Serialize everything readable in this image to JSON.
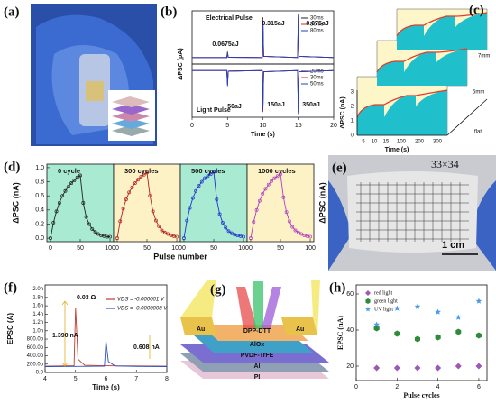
{
  "chart_data": [
    {
      "type": "stacked_line",
      "label": "(b)",
      "xlabel": "Time (s)",
      "ylabel": "ΔPSC (pA)",
      "xlim": [
        0,
        20
      ],
      "xticks": [
        0,
        5,
        10,
        15,
        20
      ],
      "x": [
        0,
        4.9,
        5,
        5.1,
        9.9,
        10,
        10.1,
        14.9,
        15,
        15.1,
        20
      ],
      "upper": {
        "title": "Electrical Pulse",
        "ylim": [
          -0.5,
          3.6
        ],
        "series": [
          {
            "name": "30ms",
            "color": "#222222",
            "values": [
              0,
              0,
              0.45,
              0.02,
              0,
              3.1,
              0.1,
              0,
              3.2,
              0.1,
              0
            ]
          },
          {
            "name": "50ms",
            "color": "#d62728",
            "values": [
              0,
              0,
              0.4,
              0.02,
              0,
              3.0,
              0.1,
              0,
              3.3,
              0.1,
              0
            ]
          },
          {
            "name": "80ms",
            "color": "#1f3fbf",
            "values": [
              0,
              0,
              0.35,
              0.02,
              0,
              2.9,
              0.1,
              0,
              3.35,
              0.1,
              0
            ]
          }
        ]
      },
      "lower": {
        "title": "Light Pulse",
        "ylim": [
          -3.6,
          0.5
        ],
        "series": [
          {
            "name": "20ms",
            "color": "#222222",
            "values": [
              0,
              0,
              -1.0,
              -0.05,
              0,
              -3.0,
              -0.1,
              0,
              -3.2,
              -0.1,
              0
            ]
          },
          {
            "name": "30ms",
            "color": "#d62728",
            "values": [
              0,
              0,
              -1.1,
              -0.05,
              0,
              -3.2,
              -0.1,
              0,
              -3.3,
              -0.1,
              0
            ]
          },
          {
            "name": "50ms",
            "color": "#1f3fbf",
            "values": [
              0,
              0,
              -1.2,
              -0.05,
              0,
              -3.1,
              -0.1,
              0,
              -3.35,
              -0.1,
              0
            ]
          }
        ]
      },
      "annotations": [
        "0.0675aJ",
        "0.315aJ",
        "0.675aJ",
        "50aJ",
        "150aJ",
        "350aJ"
      ]
    },
    {
      "type": "multi_line",
      "label": "(d)",
      "xlabel": "Pulse number",
      "ylabel": "ΔPSC (nA)",
      "ylabel_right": "ΔPSC (nA)",
      "xlim": [
        -6,
        106
      ],
      "xticks": [
        0,
        50,
        100
      ],
      "ylim": [
        -0.05,
        1.05
      ],
      "yticks": [
        {
          "value": 0,
          "label": "0.0"
        },
        0.2,
        0.4,
        0.6,
        0.8,
        {
          "value": 1,
          "label": "1.0"
        }
      ],
      "x": [
        0,
        5,
        10,
        15,
        20,
        25,
        30,
        35,
        40,
        45,
        50,
        55,
        60,
        65,
        70,
        75,
        80,
        85,
        90,
        95,
        100
      ],
      "panels": [
        {
          "title": "0 cycle",
          "color": "#222222",
          "background": "#a9ead3",
          "values": [
            0,
            0.22,
            0.38,
            0.5,
            0.6,
            0.67,
            0.73,
            0.78,
            0.82,
            0.86,
            0.89,
            0.5,
            0.3,
            0.2,
            0.13,
            0.09,
            0.06,
            0.04,
            0.03,
            0.02,
            0.02
          ]
        },
        {
          "title": "300 cycles",
          "color": "#b22222",
          "background": "#fcf2c6",
          "values": [
            0,
            0.24,
            0.42,
            0.55,
            0.65,
            0.72,
            0.78,
            0.83,
            0.87,
            0.9,
            0.93,
            0.6,
            0.38,
            0.25,
            0.17,
            0.11,
            0.08,
            0.06,
            0.04,
            0.03,
            0.02
          ]
        },
        {
          "title": "500 cycles",
          "color": "#2233cc",
          "background": "#a9ead3",
          "values": [
            0,
            0.25,
            0.43,
            0.57,
            0.67,
            0.74,
            0.8,
            0.85,
            0.88,
            0.91,
            0.94,
            0.55,
            0.34,
            0.22,
            0.15,
            0.1,
            0.07,
            0.05,
            0.04,
            0.03,
            0.02
          ]
        },
        {
          "title": "1000 cycles",
          "color": "#b040c0",
          "background": "#fcf2c6",
          "values": [
            0,
            0.23,
            0.4,
            0.53,
            0.63,
            0.7,
            0.76,
            0.81,
            0.85,
            0.88,
            0.91,
            0.58,
            0.37,
            0.24,
            0.16,
            0.11,
            0.08,
            0.06,
            0.04,
            0.03,
            0.02
          ]
        }
      ]
    },
    {
      "type": "line",
      "label": "(f)",
      "xlabel": "Time (s)",
      "ylabel": "EPSC (A)",
      "xlim": [
        4,
        8
      ],
      "xticks": [
        4,
        5,
        6,
        7,
        8
      ],
      "ylim": [
        0,
        2.1e-09
      ],
      "yticks": [
        {
          "value": 0,
          "label": "0.0"
        },
        {
          "value": 2e-10,
          "label": "200.0p"
        },
        {
          "value": 4e-10,
          "label": "400.0p"
        },
        {
          "value": 6e-10,
          "label": "600.0p"
        },
        {
          "value": 8e-10,
          "label": "800.0p"
        },
        {
          "value": 1e-09,
          "label": "1.0n"
        },
        {
          "value": 1.2e-09,
          "label": "1.2n"
        },
        {
          "value": 1.4e-09,
          "label": "1.4n"
        },
        {
          "value": 1.6e-09,
          "label": "1.6n"
        },
        {
          "value": 1.8e-09,
          "label": "1.8n"
        },
        {
          "value": 2e-09,
          "label": "2.0n"
        }
      ],
      "series": [
        {
          "name": "VDS = -0.000001 V",
          "color": "#c0392b",
          "x": [
            4,
            4.5,
            4.95,
            5.0,
            5.08,
            5.3,
            6,
            7,
            8
          ],
          "values": [
            1.5e-10,
            1.55e-10,
            1.6e-10,
            1.55e-09,
            3.2e-10,
            1.7e-10,
            1.6e-10,
            1.55e-10,
            1.5e-10
          ]
        },
        {
          "name": "VDS = -0.0000008 V",
          "color": "#2c4fbf",
          "x": [
            4,
            5,
            5.95,
            6.0,
            6.08,
            6.3,
            7,
            8
          ],
          "values": [
            1.4e-10,
            1.45e-10,
            1.5e-10,
            7.6e-10,
            2.6e-10,
            1.55e-10,
            1.45e-10,
            1.4e-10
          ]
        }
      ],
      "annotations": [
        "0.03 Ω",
        "1.390 nA",
        "0.608 nA"
      ]
    },
    {
      "type": "scatter",
      "label": "(h)",
      "xlabel": "Pulse cycles",
      "ylabel": "EPSC (nA)",
      "xlim": [
        0,
        6.4
      ],
      "xticks": [
        0,
        2,
        4,
        6
      ],
      "ylim": [
        12,
        65
      ],
      "yticks": [
        20,
        40,
        60
      ],
      "x": [
        1,
        2,
        3,
        4,
        5,
        6
      ],
      "series": [
        {
          "name": "red light",
          "color": "#9b59b6",
          "marker": "diamond",
          "values": [
            19,
            19,
            19,
            19,
            20,
            20
          ]
        },
        {
          "name": "green light",
          "color": "#2e8b3a",
          "marker": "hexagon",
          "values": [
            41,
            38,
            35,
            36,
            39,
            37
          ]
        },
        {
          "name": "UV light",
          "color": "#4a9be8",
          "marker": "star",
          "values": [
            43,
            52,
            53,
            50,
            47,
            56
          ]
        }
      ]
    }
  ],
  "figure": {
    "a": {
      "label": "(a)"
    },
    "c": {
      "label": "(c)",
      "ylabel": "ΔPSC (nA)",
      "xlabel": "Time (s)",
      "yticks": [
        "0",
        "1",
        "2",
        "3"
      ],
      "xticks": [
        "5",
        "10",
        "15",
        "100",
        "200",
        "300"
      ],
      "curves": [
        "7mm",
        "5mm",
        "flat"
      ]
    },
    "e": {
      "label": "(e)",
      "array": "33×34",
      "scale": "1 cm"
    },
    "g": {
      "label": "(g)",
      "layers": [
        "Au",
        "Au",
        "DPP-DTT",
        "AlOx",
        "PVDF-TrFE",
        "Al",
        "PI"
      ]
    }
  }
}
